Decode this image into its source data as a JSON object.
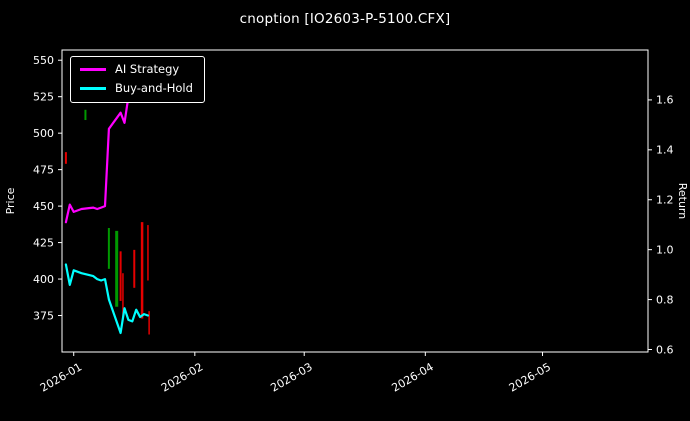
{
  "header": {
    "title": "cnoption [IO2603-P-5100.CFX]"
  },
  "colors": {
    "background": "#000000",
    "text": "#ffffff",
    "spine": "#ffffff",
    "ai_strategy": "#ff00ff",
    "buy_and_hold": "#00ffff",
    "candle_up": "#009900",
    "candle_down": "#e60000"
  },
  "chart_data": {
    "type": "line",
    "title": "cnoption [IO2603-P-5100.CFX]",
    "legend": {
      "position": "upper-left",
      "entries": [
        "AI Strategy",
        "Buy-and-Hold"
      ]
    },
    "left_axis": {
      "label": "Price",
      "lim": [
        350,
        557
      ],
      "ticks": [
        375,
        400,
        425,
        450,
        475,
        500,
        525,
        550
      ]
    },
    "right_axis": {
      "label": "Return",
      "lim": [
        0.59,
        1.8
      ],
      "ticks": [
        0.6,
        0.8,
        1.0,
        1.2,
        1.4,
        1.6
      ]
    },
    "x_axis": {
      "lim_days": [
        0,
        150
      ],
      "ticks": [
        {
          "day": 3,
          "label": "2026-01"
        },
        {
          "day": 34,
          "label": "2026-02"
        },
        {
          "day": 62,
          "label": "2026-03"
        },
        {
          "day": 93,
          "label": "2026-04"
        },
        {
          "day": 123,
          "label": "2026-05"
        }
      ]
    },
    "series": [
      {
        "name": "AI Strategy",
        "axis": "left",
        "color_key": "ai_strategy",
        "x_days": [
          1,
          2,
          3,
          5,
          8,
          9,
          10,
          11,
          12,
          15,
          16,
          17,
          18,
          19,
          20,
          21,
          22
        ],
        "values": [
          439,
          451,
          446,
          448,
          449,
          448,
          449,
          450,
          503,
          514,
          507,
          525,
          523,
          524,
          524,
          540,
          539
        ]
      },
      {
        "name": "Buy-and-Hold",
        "axis": "left",
        "color_key": "buy_and_hold",
        "x_days": [
          1,
          2,
          3,
          5,
          8,
          9,
          10,
          11,
          12,
          15,
          16,
          17,
          18,
          19,
          20,
          21,
          22
        ],
        "values": [
          410,
          396,
          406,
          404,
          402,
          400,
          399,
          400,
          386,
          363,
          380,
          372,
          371,
          379,
          374,
          376,
          375
        ]
      }
    ],
    "candles": [
      {
        "x_day": 1,
        "low": 479,
        "high": 487,
        "direction": "down",
        "width": 2
      },
      {
        "x_day": 6,
        "low": 509,
        "high": 516,
        "direction": "up",
        "width": 2
      },
      {
        "x_day": 12,
        "low": 407,
        "high": 435,
        "direction": "up",
        "width": 2
      },
      {
        "x_day": 14,
        "low": 381,
        "high": 433,
        "direction": "up",
        "width": 3
      },
      {
        "x_day": 15,
        "low": 385,
        "high": 419,
        "direction": "down",
        "width": 2
      },
      {
        "x_day": 15.6,
        "low": 372,
        "high": 404,
        "direction": "down",
        "width": 1.5
      },
      {
        "x_day": 18.5,
        "low": 394,
        "high": 420,
        "direction": "down",
        "width": 2
      },
      {
        "x_day": 20.5,
        "low": 373,
        "high": 439,
        "direction": "down",
        "width": 2.5
      },
      {
        "x_day": 22,
        "low": 399,
        "high": 437,
        "direction": "down",
        "width": 1.5
      },
      {
        "x_day": 22.3,
        "low": 362,
        "high": 378,
        "direction": "down",
        "width": 1.5
      }
    ]
  }
}
